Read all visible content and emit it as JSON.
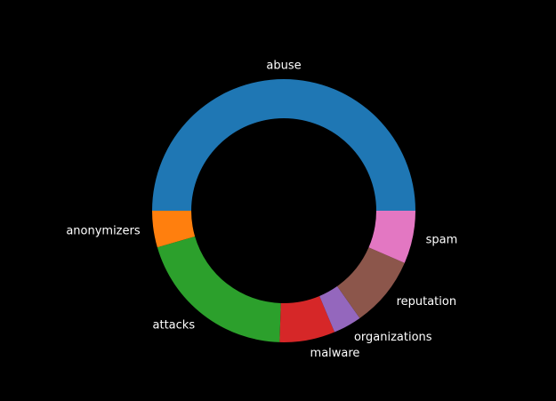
{
  "chart_data": {
    "type": "pie",
    "style": "donut",
    "categories": [
      "abuse",
      "anonymizers",
      "attacks",
      "malware",
      "organizations",
      "reputation",
      "spam"
    ],
    "values": [
      50.0,
      4.5,
      20.0,
      6.8,
      3.5,
      8.7,
      6.5
    ],
    "colors": [
      "#1f77b4",
      "#ff7f0e",
      "#2ca02c",
      "#d62728",
      "#9467bd",
      "#8c564b",
      "#e377c2"
    ],
    "title": "",
    "legend": "none",
    "background": "#000000",
    "label_color": "#ffffff"
  }
}
